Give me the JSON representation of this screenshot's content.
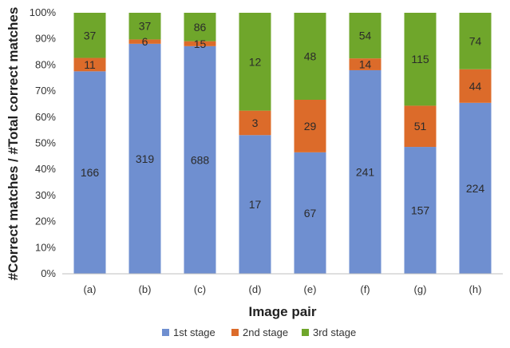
{
  "chart_data": {
    "type": "bar",
    "stacked": true,
    "normalized": true,
    "xlabel": "Image pair",
    "ylabel": "#Correct matches / #Total  correct matches",
    "ylim": [
      0,
      100
    ],
    "yticks": [
      "0%",
      "10%",
      "20%",
      "30%",
      "40%",
      "50%",
      "60%",
      "70%",
      "80%",
      "90%",
      "100%"
    ],
    "categories": [
      "(a)",
      "(b)",
      "(c)",
      "(d)",
      "(e)",
      "(f)",
      "(g)",
      "(h)"
    ],
    "series": [
      {
        "name": "1st stage",
        "color": "#6f8fd0",
        "values": [
          166,
          319,
          688,
          17,
          67,
          241,
          157,
          224
        ]
      },
      {
        "name": "2nd stage",
        "color": "#dc6b2a",
        "values": [
          11,
          6,
          15,
          3,
          29,
          14,
          51,
          44
        ]
      },
      {
        "name": "3rd stage",
        "color": "#6fa62b",
        "values": [
          37,
          37,
          86,
          12,
          48,
          54,
          115,
          74
        ]
      }
    ],
    "legend_position": "bottom",
    "grid": false
  }
}
